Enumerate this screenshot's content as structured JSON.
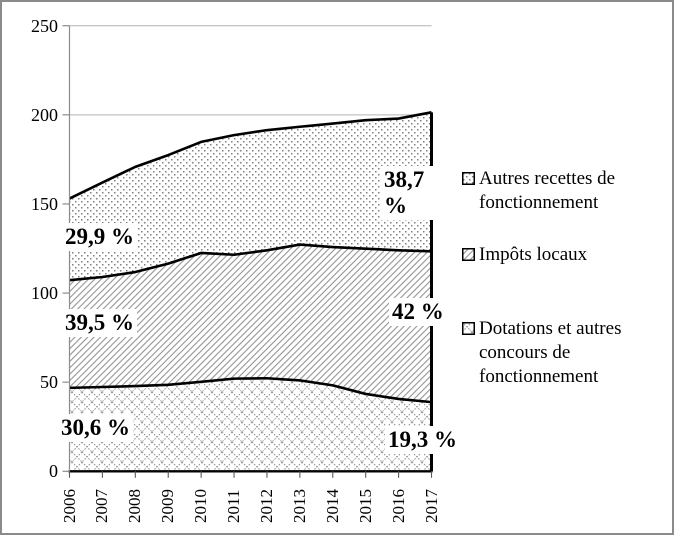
{
  "chart_data": {
    "type": "area",
    "stacked": true,
    "categories": [
      "2006",
      "2007",
      "2008",
      "2009",
      "2010",
      "2011",
      "2012",
      "2013",
      "2014",
      "2015",
      "2016",
      "2017"
    ],
    "series": [
      {
        "name": "Dotations et autres concours de fonctionnement",
        "pattern": "diamond-crosshatch",
        "values": [
          46.8,
          47.3,
          47.8,
          48.5,
          50.2,
          52.0,
          52.2,
          51.0,
          48.2,
          43.4,
          40.6,
          38.8
        ]
      },
      {
        "name": "Impôts locaux",
        "pattern": "diagonal-hatch",
        "values": [
          60.4,
          61.7,
          64.0,
          68.0,
          72.3,
          69.5,
          71.8,
          76.2,
          77.6,
          81.5,
          83.4,
          84.6
        ]
      },
      {
        "name": "Autres recettes de fonctionnement",
        "pattern": "dots",
        "values": [
          45.8,
          53.0,
          59.0,
          60.9,
          62.3,
          67.1,
          67.4,
          66.1,
          69.3,
          72.1,
          73.9,
          78.0
        ]
      }
    ],
    "ylim": [
      0,
      250
    ],
    "yticks": [
      0,
      50,
      100,
      150,
      200,
      250
    ],
    "grid": "horizontal",
    "legend_position": "right",
    "annotations": [
      {
        "id": "autres-start",
        "text": "29,9 %"
      },
      {
        "id": "impots-start",
        "text": "39,5 %"
      },
      {
        "id": "dotations-start",
        "text": "30,6 %"
      },
      {
        "id": "autres-end",
        "text": "38,7 %"
      },
      {
        "id": "impots-end",
        "text": "42 %"
      },
      {
        "id": "dotations-end",
        "text": "19,3 %"
      }
    ],
    "colors": {
      "line": "#000000",
      "grid": "#b3b3b3",
      "axis": "#8c8c8c",
      "pattern_gray": "#808080",
      "background": "#ffffff",
      "frame_border": "#8a8a8a"
    }
  },
  "legend": {
    "items": [
      {
        "label": "Autres recettes de fonctionnement",
        "swatch": "dots"
      },
      {
        "label": "Impôts locaux",
        "swatch": "diagonal-hatch"
      },
      {
        "label": "Dotations et autres concours de fonctionnement",
        "swatch": "diamond-crosshatch"
      }
    ]
  }
}
